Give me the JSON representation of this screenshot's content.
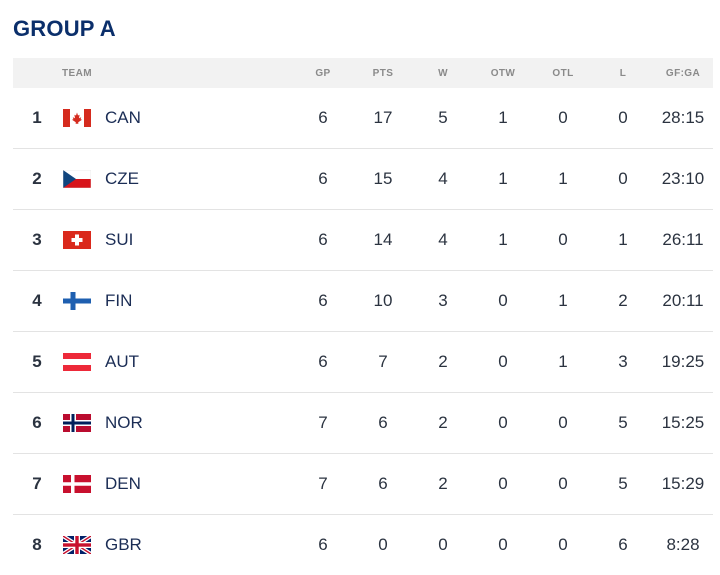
{
  "group_title": "GROUP A",
  "columns": {
    "team": "TEAM",
    "gp": "GP",
    "pts": "PTS",
    "w": "W",
    "otw": "OTW",
    "otl": "OTL",
    "l": "L",
    "gfga": "GF:GA"
  },
  "rows": [
    {
      "rank": "1",
      "team": "CAN",
      "flag": "canada-flag-icon",
      "gp": "6",
      "pts": "17",
      "w": "5",
      "otw": "1",
      "otl": "0",
      "l": "0",
      "gfga": "28:15"
    },
    {
      "rank": "2",
      "team": "CZE",
      "flag": "czech-flag-icon",
      "gp": "6",
      "pts": "15",
      "w": "4",
      "otw": "1",
      "otl": "1",
      "l": "0",
      "gfga": "23:10"
    },
    {
      "rank": "3",
      "team": "SUI",
      "flag": "swiss-flag-icon",
      "gp": "6",
      "pts": "14",
      "w": "4",
      "otw": "1",
      "otl": "0",
      "l": "1",
      "gfga": "26:11"
    },
    {
      "rank": "4",
      "team": "FIN",
      "flag": "finland-flag-icon",
      "gp": "6",
      "pts": "10",
      "w": "3",
      "otw": "0",
      "otl": "1",
      "l": "2",
      "gfga": "20:11"
    },
    {
      "rank": "5",
      "team": "AUT",
      "flag": "austria-flag-icon",
      "gp": "6",
      "pts": "7",
      "w": "2",
      "otw": "0",
      "otl": "1",
      "l": "3",
      "gfga": "19:25"
    },
    {
      "rank": "6",
      "team": "NOR",
      "flag": "norway-flag-icon",
      "gp": "7",
      "pts": "6",
      "w": "2",
      "otw": "0",
      "otl": "0",
      "l": "5",
      "gfga": "15:25"
    },
    {
      "rank": "7",
      "team": "DEN",
      "flag": "denmark-flag-icon",
      "gp": "7",
      "pts": "6",
      "w": "2",
      "otw": "0",
      "otl": "0",
      "l": "5",
      "gfga": "15:29"
    },
    {
      "rank": "8",
      "team": "GBR",
      "flag": "great-britain-flag-icon",
      "gp": "6",
      "pts": "0",
      "w": "0",
      "otw": "0",
      "otl": "0",
      "l": "6",
      "gfga": "8:28"
    }
  ]
}
